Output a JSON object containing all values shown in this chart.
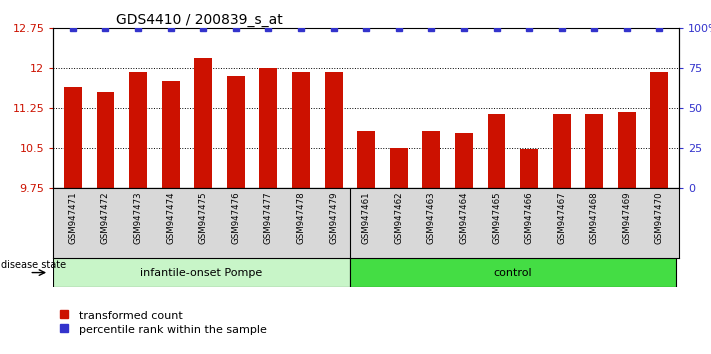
{
  "title": "GDS4410 / 200839_s_at",
  "samples": [
    "GSM947471",
    "GSM947472",
    "GSM947473",
    "GSM947474",
    "GSM947475",
    "GSM947476",
    "GSM947477",
    "GSM947478",
    "GSM947479",
    "GSM947461",
    "GSM947462",
    "GSM947463",
    "GSM947464",
    "GSM947465",
    "GSM947466",
    "GSM947467",
    "GSM947468",
    "GSM947469",
    "GSM947470"
  ],
  "transformed_counts": [
    11.65,
    11.55,
    11.93,
    11.75,
    12.2,
    11.85,
    12.0,
    11.93,
    11.93,
    10.82,
    10.5,
    10.82,
    10.78,
    11.13,
    10.48,
    11.13,
    11.13,
    11.18,
    11.93
  ],
  "percentile_ranks": [
    100,
    100,
    100,
    100,
    100,
    100,
    100,
    100,
    100,
    100,
    100,
    100,
    100,
    100,
    100,
    100,
    100,
    100,
    100
  ],
  "n_pompe": 9,
  "n_control": 10,
  "bar_color": "#CC1100",
  "percentile_color": "#3333CC",
  "ylim_left": [
    9.75,
    12.75
  ],
  "ylim_right": [
    0,
    100
  ],
  "yticks_left": [
    9.75,
    10.5,
    11.25,
    12.0,
    12.75
  ],
  "yticks_right": [
    0,
    25,
    50,
    75,
    100
  ],
  "ytick_labels_left": [
    "9.75",
    "10.5",
    "11.25",
    "12",
    "12.75"
  ],
  "ytick_labels_right": [
    "0",
    "25",
    "50",
    "75",
    "100%"
  ],
  "grid_yticks": [
    10.5,
    11.25,
    12.0
  ],
  "legend_red_label": "transformed count",
  "legend_blue_label": "percentile rank within the sample",
  "disease_state_label": "disease state",
  "infantile_label": "infantile-onset Pompe",
  "control_label": "control",
  "pompe_color": "#c8f5c8",
  "control_color": "#44dd44",
  "xtick_bg_color": "#d8d8d8"
}
